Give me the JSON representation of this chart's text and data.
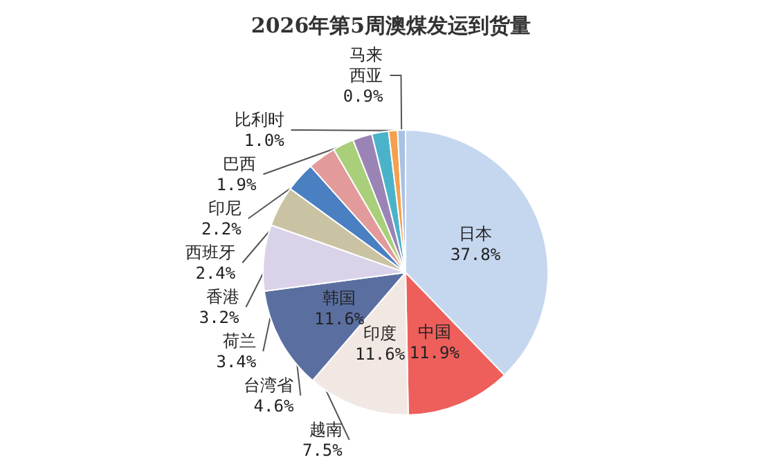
{
  "chart_data": {
    "type": "pie",
    "title": "2026年第5周澳煤发运到货量",
    "categories": [
      "日本",
      "中国",
      "印度",
      "韩国",
      "越南",
      "台湾省",
      "荷兰",
      "香港",
      "西班牙",
      "印尼",
      "巴西",
      "比利时",
      "马来西亚"
    ],
    "values": [
      37.8,
      11.9,
      11.6,
      11.6,
      7.5,
      4.6,
      3.4,
      3.2,
      2.4,
      2.2,
      1.9,
      1.0,
      0.9
    ],
    "colors": [
      "#c5d7ef",
      "#ee5f5b",
      "#f2e8e3",
      "#5a6fa0",
      "#d9d2e9",
      "#c9c3a3",
      "#4a7fc1",
      "#e39a9a",
      "#a9cf7a",
      "#9a84b5",
      "#4bb3c9",
      "#f5a04e",
      "#a9c1e3"
    ],
    "value_labels": [
      "37.8%",
      "11.9%",
      "11.6%",
      "11.6%",
      "7.5%",
      "4.6%",
      "3.4%",
      "3.2%",
      "2.4%",
      "2.2%",
      "1.9%",
      "1.0%",
      "0.9%"
    ],
    "legend": false
  }
}
